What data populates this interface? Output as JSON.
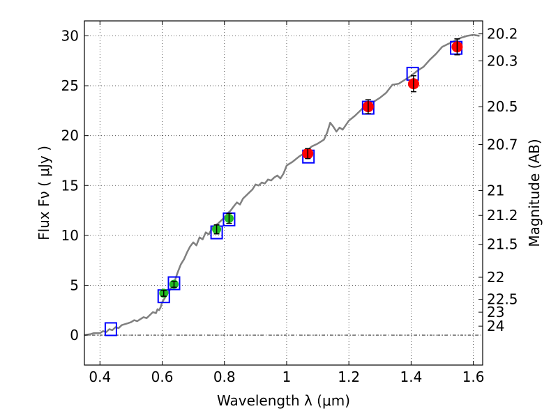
{
  "chart_data": {
    "type": "scatter",
    "xlabel": "Wavelength  λ (μm)",
    "ylabel": "Flux  Fν  ( μJy )",
    "y2label": "Magnitude (AB)",
    "xlim": [
      0.35,
      1.63
    ],
    "ylim": [
      -3,
      31.5
    ],
    "grid": true,
    "x_ticks": [
      0.4,
      0.6,
      0.8,
      1.0,
      1.2,
      1.4,
      1.6
    ],
    "x_tick_labels": [
      "0.4",
      "0.6",
      "0.8",
      "1",
      "1.2",
      "1.4",
      "1.6"
    ],
    "y_ticks": [
      0,
      5,
      10,
      15,
      20,
      25,
      30
    ],
    "y_tick_labels": [
      "0",
      "5",
      "10",
      "15",
      "20",
      "25",
      "30"
    ],
    "y2_ticks": [
      {
        "label": "20.2",
        "flux": 30.2
      },
      {
        "label": "20.3",
        "flux": 27.5
      },
      {
        "label": "20.5",
        "flux": 22.9
      },
      {
        "label": "20.7",
        "flux": 19.1
      },
      {
        "label": "21",
        "flux": 14.5
      },
      {
        "label": "21.2",
        "flux": 12.0
      },
      {
        "label": "21.5",
        "flux": 9.1
      },
      {
        "label": "22",
        "flux": 5.8
      },
      {
        "label": "22.5",
        "flux": 3.6
      },
      {
        "label": "23",
        "flux": 2.3
      },
      {
        "label": "24",
        "flux": 0.9
      }
    ],
    "zero_line": 0,
    "colors": {
      "model": "#808080",
      "box": "#0000ff",
      "green": "#22bb22",
      "red": "#ff0000",
      "errorbar": "#000000"
    },
    "series": [
      {
        "kind": "line",
        "x": [
          0.35,
          0.37,
          0.38,
          0.4,
          0.41,
          0.42,
          0.43,
          0.44,
          0.45,
          0.46,
          0.47,
          0.48,
          0.49,
          0.5,
          0.51,
          0.52,
          0.53,
          0.54,
          0.55,
          0.56,
          0.57,
          0.58,
          0.585,
          0.59,
          0.595,
          0.6,
          0.61,
          0.62,
          0.63,
          0.64,
          0.65,
          0.66,
          0.67,
          0.68,
          0.69,
          0.7,
          0.71,
          0.72,
          0.73,
          0.74,
          0.75,
          0.76,
          0.77,
          0.78,
          0.79,
          0.8,
          0.81,
          0.82,
          0.83,
          0.84,
          0.85,
          0.86,
          0.87,
          0.88,
          0.89,
          0.9,
          0.91,
          0.92,
          0.93,
          0.94,
          0.95,
          0.96,
          0.97,
          0.98,
          0.99,
          1.0,
          1.02,
          1.04,
          1.06,
          1.08,
          1.1,
          1.12,
          1.13,
          1.14,
          1.15,
          1.16,
          1.17,
          1.18,
          1.2,
          1.22,
          1.24,
          1.26,
          1.28,
          1.3,
          1.32,
          1.34,
          1.36,
          1.38,
          1.4,
          1.42,
          1.44,
          1.46,
          1.48,
          1.5,
          1.52,
          1.54,
          1.56,
          1.58,
          1.6,
          1.62
        ],
        "y": [
          0.0,
          0.1,
          0.2,
          0.2,
          0.4,
          0.3,
          0.6,
          0.5,
          0.8,
          0.7,
          1.0,
          1.1,
          1.2,
          1.3,
          1.5,
          1.4,
          1.6,
          1.8,
          1.7,
          2.0,
          2.3,
          2.2,
          2.6,
          2.5,
          2.8,
          3.3,
          3.8,
          4.3,
          4.8,
          5.4,
          6.3,
          7.1,
          7.6,
          8.3,
          8.9,
          9.3,
          9.0,
          9.8,
          9.6,
          10.3,
          10.1,
          10.7,
          11.0,
          11.2,
          11.5,
          11.8,
          12.2,
          12.5,
          12.9,
          13.3,
          13.1,
          13.7,
          14.0,
          14.3,
          14.6,
          15.1,
          15.0,
          15.3,
          15.2,
          15.6,
          15.5,
          15.8,
          16.0,
          15.7,
          16.2,
          17.0,
          17.4,
          17.9,
          18.3,
          18.9,
          19.2,
          19.6,
          20.3,
          21.3,
          20.9,
          20.4,
          20.8,
          20.6,
          21.5,
          22.0,
          22.6,
          23.3,
          23.4,
          23.8,
          24.3,
          25.1,
          25.2,
          25.6,
          26.0,
          26.5,
          26.9,
          27.6,
          28.2,
          28.9,
          29.2,
          29.5,
          29.8,
          30.0,
          30.1,
          30.0
        ]
      },
      {
        "kind": "box",
        "x": [
          0.435,
          0.605,
          0.638,
          0.775,
          0.815,
          1.07,
          1.262,
          1.405,
          1.545
        ],
        "y": [
          0.6,
          3.9,
          5.2,
          10.3,
          11.6,
          17.9,
          22.8,
          26.2,
          28.8
        ]
      },
      {
        "kind": "green-points",
        "x": [
          0.605,
          0.638,
          0.775,
          0.815
        ],
        "y": [
          4.2,
          5.1,
          10.6,
          11.7
        ],
        "yerr": [
          0.3,
          0.3,
          0.45,
          0.5
        ]
      },
      {
        "kind": "red-points",
        "x": [
          1.068,
          1.262,
          1.408,
          1.548
        ],
        "y": [
          18.2,
          22.9,
          25.2,
          28.9
        ],
        "yerr": [
          0.5,
          0.7,
          0.8,
          0.8
        ]
      }
    ]
  }
}
